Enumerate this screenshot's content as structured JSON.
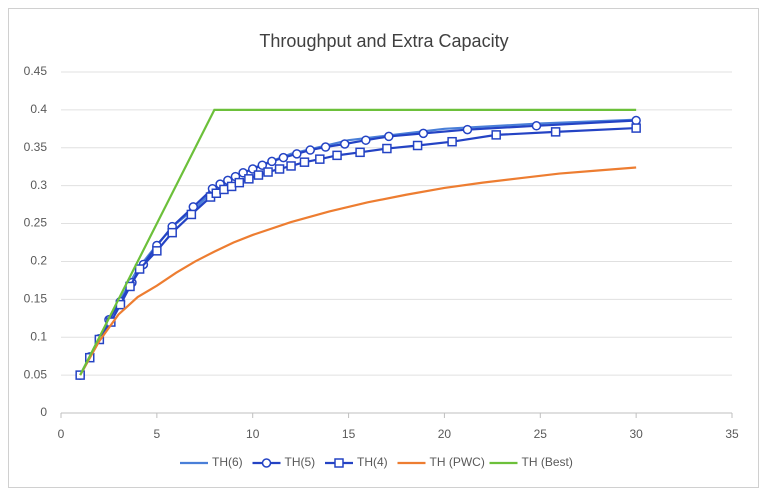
{
  "chart_data": {
    "type": "line",
    "title": "Throughput and Extra Capacity",
    "xlim": [
      0,
      35
    ],
    "xticks": [
      0,
      5,
      10,
      15,
      20,
      25,
      30,
      35
    ],
    "ylim": [
      0,
      0.45
    ],
    "yticks": [
      0,
      0.05,
      0.1,
      0.15,
      0.2,
      0.25,
      0.3,
      0.35,
      0.4,
      0.45
    ],
    "grid": true,
    "legend": "bottom",
    "series": [
      {
        "name": "TH(6)",
        "color": "#4a7fd8",
        "marker": "none",
        "x": [
          1,
          2,
          3,
          4,
          5,
          6,
          7,
          8,
          10,
          12,
          15,
          20,
          25,
          30
        ],
        "values": [
          0.05,
          0.099,
          0.145,
          0.19,
          0.222,
          0.25,
          0.27,
          0.295,
          0.323,
          0.342,
          0.36,
          0.375,
          0.382,
          0.387
        ]
      },
      {
        "name": "TH(5)",
        "color": "#2443c4",
        "marker": "circle",
        "x": [
          1,
          1.5,
          2,
          2.5,
          3.1,
          3.7,
          4.3,
          5,
          5.8,
          6.9,
          7.9,
          8.3,
          8.7,
          9.1,
          9.5,
          10,
          10.5,
          11,
          11.6,
          12.3,
          13,
          13.8,
          14.8,
          15.9,
          17.1,
          18.9,
          21.2,
          24.8,
          30
        ],
        "values": [
          0.05,
          0.074,
          0.098,
          0.123,
          0.147,
          0.172,
          0.196,
          0.221,
          0.246,
          0.272,
          0.296,
          0.302,
          0.307,
          0.312,
          0.317,
          0.322,
          0.327,
          0.332,
          0.337,
          0.342,
          0.347,
          0.351,
          0.355,
          0.36,
          0.365,
          0.369,
          0.374,
          0.379,
          0.386
        ]
      },
      {
        "name": "TH(4)",
        "color": "#2443c4",
        "marker": "square",
        "x": [
          1,
          1.5,
          2,
          2.6,
          3.1,
          3.6,
          4.1,
          5,
          5.8,
          6.8,
          7.8,
          8.1,
          8.5,
          8.9,
          9.3,
          9.8,
          10.3,
          10.8,
          11.4,
          12,
          12.7,
          13.5,
          14.4,
          15.6,
          17,
          18.6,
          20.4,
          22.7,
          25.8,
          30
        ],
        "values": [
          0.05,
          0.073,
          0.097,
          0.12,
          0.143,
          0.167,
          0.19,
          0.214,
          0.238,
          0.262,
          0.285,
          0.29,
          0.295,
          0.299,
          0.304,
          0.309,
          0.314,
          0.318,
          0.322,
          0.326,
          0.331,
          0.335,
          0.34,
          0.344,
          0.349,
          0.353,
          0.358,
          0.367,
          0.371,
          0.376
        ]
      },
      {
        "name": "TH (PWC)",
        "color": "#ed7d31",
        "marker": "none",
        "x": [
          1,
          2,
          3,
          4,
          5,
          6,
          7,
          8,
          9,
          10,
          12,
          14,
          16,
          18,
          20,
          22,
          24,
          26,
          28,
          30
        ],
        "values": [
          0.05,
          0.095,
          0.13,
          0.153,
          0.168,
          0.185,
          0.2,
          0.213,
          0.225,
          0.235,
          0.252,
          0.266,
          0.278,
          0.288,
          0.297,
          0.304,
          0.31,
          0.316,
          0.32,
          0.324
        ]
      },
      {
        "name": "TH (Best)",
        "color": "#6cc03a",
        "marker": "none",
        "x": [
          1,
          8,
          30
        ],
        "values": [
          0.05,
          0.4,
          0.4
        ]
      }
    ]
  }
}
